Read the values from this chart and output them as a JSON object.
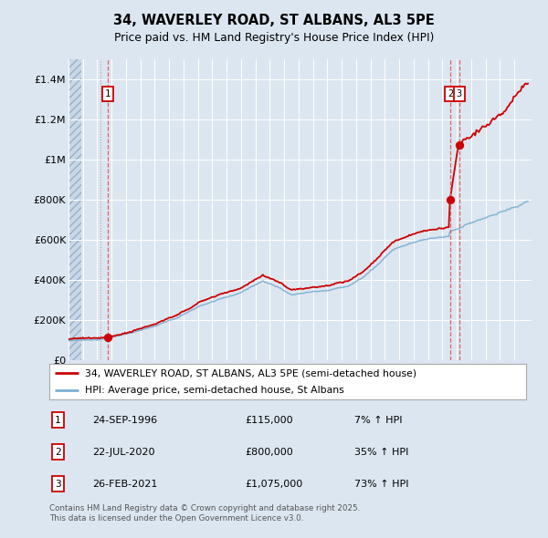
{
  "title": "34, WAVERLEY ROAD, ST ALBANS, AL3 5PE",
  "subtitle": "Price paid vs. HM Land Registry's House Price Index (HPI)",
  "legend_property": "34, WAVERLEY ROAD, ST ALBANS, AL3 5PE (semi-detached house)",
  "legend_hpi": "HPI: Average price, semi-detached house, St Albans",
  "transactions": [
    {
      "num": 1,
      "date": "24-SEP-1996",
      "price": 115000,
      "pct": "7%",
      "dir": "↑",
      "year_x": 1996.73
    },
    {
      "num": 2,
      "date": "22-JUL-2020",
      "price": 800000,
      "pct": "35%",
      "dir": "↑",
      "year_x": 2020.55
    },
    {
      "num": 3,
      "date": "26-FEB-2021",
      "price": 1075000,
      "pct": "73%",
      "dir": "↑",
      "year_x": 2021.16
    }
  ],
  "footnote": "Contains HM Land Registry data © Crown copyright and database right 2025.\nThis data is licensed under the Open Government Licence v3.0.",
  "bg_color": "#dce6f0",
  "grid_color": "#ffffff",
  "red_color": "#cc0000",
  "blue_color": "#7bafd4",
  "vline_color": "#e06060",
  "yticks": [
    0,
    200000,
    400000,
    600000,
    800000,
    1000000,
    1200000,
    1400000
  ],
  "ylabels": [
    "£0",
    "£200K",
    "£400K",
    "£600K",
    "£800K",
    "£1M",
    "£1.2M",
    "£1.4M"
  ],
  "ylim": [
    0,
    1500000
  ],
  "xlim": [
    1994.0,
    2026.2
  ]
}
